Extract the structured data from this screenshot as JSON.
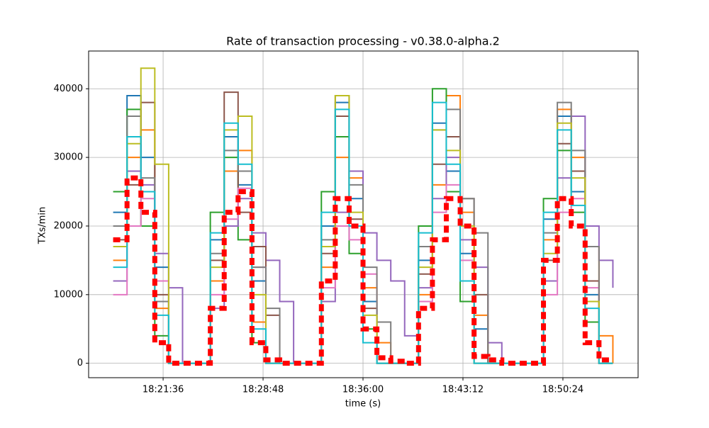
{
  "chart_data": {
    "type": "line",
    "title": "Rate of transaction processing  -  v0.38.0-alpha.2",
    "xlabel": "time (s)",
    "ylabel": "TXs/min",
    "step": true,
    "grid": true,
    "x": [
      "18:18:00",
      "18:19:00",
      "18:20:00",
      "18:21:00",
      "18:22:00",
      "18:23:00",
      "18:24:00",
      "18:25:00",
      "18:26:00",
      "18:27:00",
      "18:28:00",
      "18:29:00",
      "18:30:00",
      "18:31:00",
      "18:32:00",
      "18:33:00",
      "18:34:00",
      "18:35:00",
      "18:36:00",
      "18:37:00",
      "18:38:00",
      "18:39:00",
      "18:40:00",
      "18:41:00",
      "18:42:00",
      "18:43:00",
      "18:44:00",
      "18:45:00",
      "18:46:00",
      "18:47:00",
      "18:48:00",
      "18:49:00",
      "18:50:00",
      "18:51:00",
      "18:52:00",
      "18:53:00",
      "18:54:00"
    ],
    "xlim": [
      "18:16:14",
      "18:55:49"
    ],
    "xticks": [
      "18:21:36",
      "18:28:48",
      "18:36:00",
      "18:43:12",
      "18:50:24"
    ],
    "ylim": [
      -2100,
      45500
    ],
    "yticks": [
      0,
      10000,
      20000,
      30000,
      40000
    ],
    "series": [
      {
        "color": "#1f77b4",
        "width": 2,
        "values": [
          22000,
          39000,
          30000,
          14000,
          0,
          0,
          0,
          18000,
          33000,
          26000,
          12000,
          0,
          0,
          0,
          0,
          20000,
          38000,
          24000,
          9000,
          0,
          0,
          0,
          15000,
          35000,
          28000,
          16000,
          5000,
          0,
          0,
          0,
          0,
          21000,
          36000,
          25000,
          10000,
          0,
          0
        ]
      },
      {
        "color": "#ff7f0e",
        "width": 2,
        "values": [
          15000,
          30000,
          34000,
          8000,
          0,
          0,
          0,
          12000,
          28000,
          31000,
          6000,
          0,
          0,
          0,
          0,
          14000,
          30000,
          27000,
          11000,
          3000,
          0,
          0,
          10000,
          26000,
          39000,
          22000,
          7000,
          0,
          0,
          0,
          0,
          18000,
          37000,
          30000,
          17000,
          4000,
          0
        ]
      },
      {
        "color": "#2ca02c",
        "width": 2,
        "values": [
          25000,
          37000,
          20000,
          4000,
          0,
          0,
          0,
          22000,
          30000,
          18000,
          3000,
          0,
          0,
          0,
          0,
          25000,
          33000,
          16000,
          5000,
          0,
          0,
          0,
          20000,
          40000,
          25000,
          9000,
          0,
          0,
          0,
          0,
          0,
          24000,
          31000,
          22000,
          6000,
          0,
          0
        ]
      },
      {
        "color": "#9467bd",
        "width": 2,
        "values": [
          12000,
          28000,
          26000,
          16000,
          11000,
          0,
          0,
          8000,
          20000,
          24000,
          19000,
          15000,
          9000,
          0,
          0,
          9000,
          22000,
          28000,
          19000,
          15000,
          12000,
          4000,
          11000,
          24000,
          30000,
          18000,
          14000,
          3000,
          0,
          0,
          0,
          12000,
          27000,
          36000,
          20000,
          15000,
          11000
        ]
      },
      {
        "color": "#8c564b",
        "width": 2,
        "values": [
          18000,
          26000,
          38000,
          10000,
          0,
          0,
          0,
          15000,
          39500,
          22000,
          17000,
          7000,
          0,
          0,
          0,
          16000,
          36000,
          21000,
          8000,
          0,
          0,
          0,
          13000,
          29000,
          33000,
          24000,
          10000,
          0,
          0,
          0,
          0,
          15000,
          32000,
          28000,
          12000,
          0,
          0
        ]
      },
      {
        "color": "#e377c2",
        "width": 2,
        "values": [
          10000,
          20000,
          24000,
          12000,
          0,
          0,
          0,
          10000,
          21000,
          25500,
          14000,
          0,
          0,
          0,
          0,
          11000,
          20000,
          18000,
          13000,
          0,
          0,
          0,
          9000,
          22000,
          26000,
          15000,
          0,
          0,
          0,
          0,
          0,
          10000,
          22000,
          24000,
          11000,
          0,
          0
        ]
      },
      {
        "color": "#7f7f7f",
        "width": 2,
        "values": [
          20000,
          36000,
          27000,
          9000,
          0,
          0,
          0,
          16000,
          31000,
          28000,
          14000,
          8000,
          0,
          0,
          0,
          18000,
          39000,
          26000,
          14000,
          6000,
          0,
          0,
          17000,
          34000,
          37000,
          24000,
          19000,
          0,
          0,
          0,
          0,
          19000,
          38000,
          31000,
          17000,
          0,
          0
        ]
      },
      {
        "color": "#bcbd22",
        "width": 2,
        "values": [
          17000,
          32000,
          43000,
          29000,
          0,
          0,
          0,
          14000,
          34000,
          36000,
          10000,
          0,
          0,
          0,
          0,
          17000,
          39000,
          22000,
          7000,
          0,
          0,
          0,
          14000,
          34000,
          31000,
          20000,
          0,
          0,
          0,
          0,
          0,
          16000,
          35000,
          27000,
          9000,
          0,
          0
        ]
      },
      {
        "color": "#17becf",
        "width": 2,
        "values": [
          14000,
          33000,
          25000,
          7000,
          0,
          0,
          0,
          19000,
          35000,
          29000,
          5000,
          0,
          0,
          0,
          0,
          22000,
          37000,
          20000,
          3000,
          0,
          0,
          0,
          19000,
          38000,
          29000,
          12000,
          0,
          0,
          0,
          0,
          0,
          22000,
          34000,
          23000,
          8000,
          0,
          0
        ]
      },
      {
        "color": "#ff0000",
        "width": 7,
        "dash": true,
        "values": [
          18000,
          27000,
          22000,
          3000,
          0,
          0,
          0,
          8000,
          22000,
          25000,
          3000,
          500,
          0,
          0,
          0,
          12000,
          24000,
          20000,
          5000,
          800,
          300,
          0,
          8000,
          18000,
          24000,
          20000,
          1000,
          500,
          0,
          0,
          0,
          15000,
          24000,
          20000,
          3000,
          500,
          500
        ]
      }
    ]
  }
}
